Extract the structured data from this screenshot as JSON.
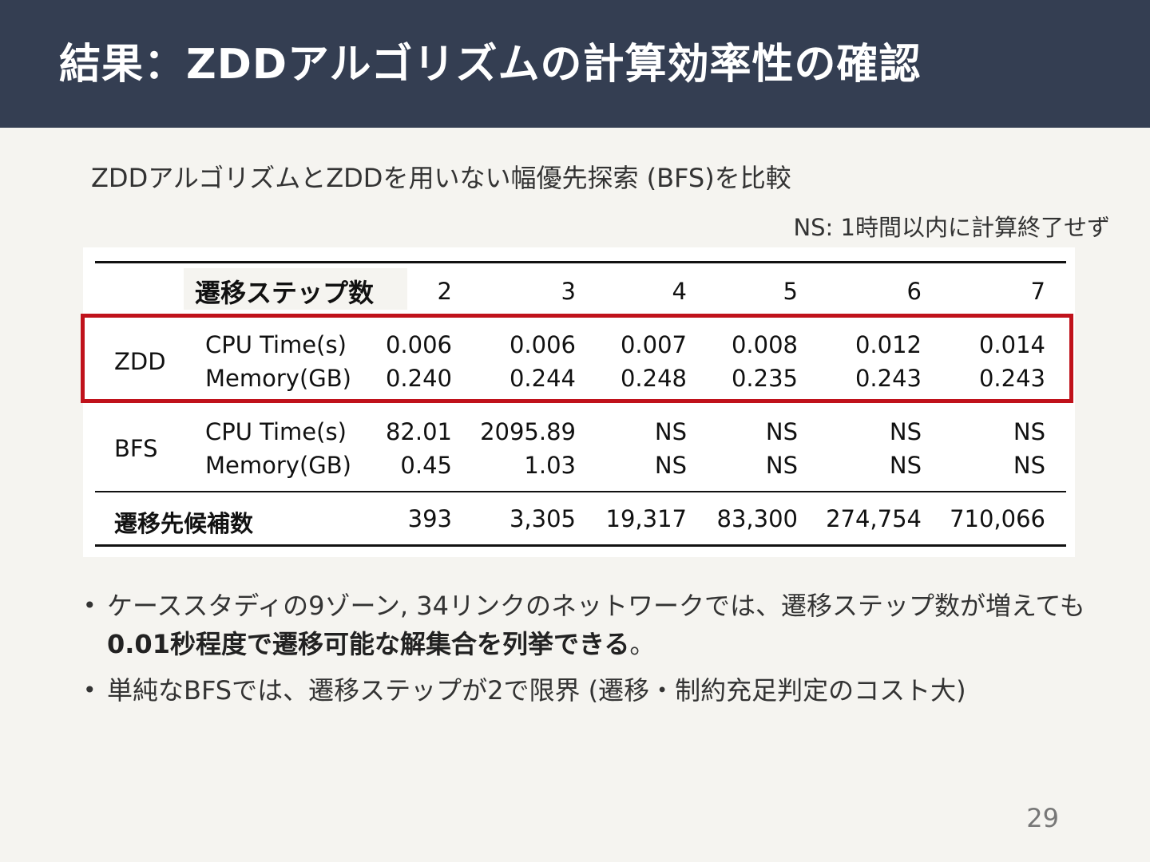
{
  "slide": {
    "title": "結果：ZDDアルゴリズムの計算効率性の確認",
    "subtitle": "ZDDアルゴリズムとZDDを用いない幅優先探索 (BFS)を比較",
    "note": "NS: 1時間以内に計算終了せず",
    "page_number": "29"
  },
  "table": {
    "header_label": "遷移ステップ数",
    "steps": [
      "2",
      "3",
      "4",
      "5",
      "6",
      "7"
    ],
    "zdd": {
      "label": "ZDD",
      "cpu_label": "CPU Time(s)",
      "mem_label": "Memory(GB)",
      "cpu": [
        "0.006",
        "0.006",
        "0.007",
        "0.008",
        "0.012",
        "0.014"
      ],
      "mem": [
        "0.240",
        "0.244",
        "0.248",
        "0.235",
        "0.243",
        "0.243"
      ]
    },
    "bfs": {
      "label": "BFS",
      "cpu_label": "CPU Time(s)",
      "mem_label": "Memory(GB)",
      "cpu": [
        "82.01",
        "2095.89",
        "NS",
        "NS",
        "NS",
        "NS"
      ],
      "mem": [
        "0.45",
        "1.03",
        "NS",
        "NS",
        "NS",
        "NS"
      ]
    },
    "candidates": {
      "label": "遷移先候補数",
      "values": [
        "393",
        "3,305",
        "19,317",
        "83,300",
        "274,754",
        "710,066"
      ]
    }
  },
  "bullets": [
    {
      "text_before": "ケーススタディの9ゾーン, 34リンクのネットワークでは、遷移ステップ数が増えても",
      "text_bold": "0.01秒程度で遷移可能な解集合を列挙できる",
      "text_after": "。"
    },
    {
      "text": "単純なBFSでは、遷移ステップが2で限界 (遷移・制約充足判定のコスト大)"
    }
  ],
  "colors": {
    "header_bg": "#343e52",
    "page_bg": "#f5f4f0",
    "highlight": "#c0121b"
  }
}
